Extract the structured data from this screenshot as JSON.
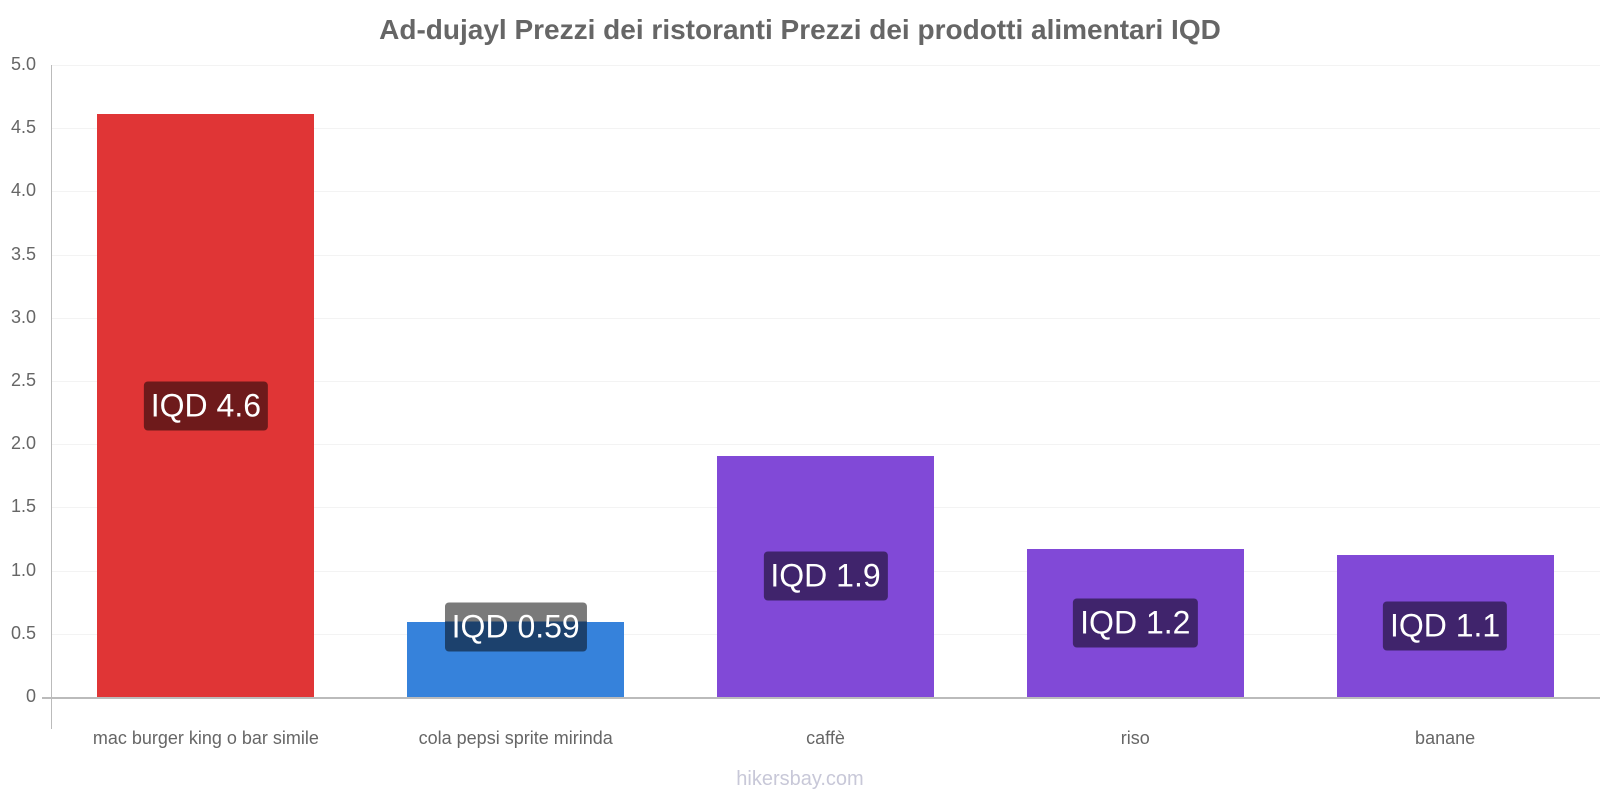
{
  "title": "Ad-dujayl Prezzi dei ristoranti Prezzi dei prodotti alimentari IQD",
  "watermark": "hikersbay.com",
  "y_ticks": [
    "0",
    "0.5",
    "1.0",
    "1.5",
    "2.0",
    "2.5",
    "3.0",
    "3.5",
    "4.0",
    "4.5",
    "5.0"
  ],
  "bars": [
    {
      "category": "mac burger king o bar simile",
      "value": 4.61,
      "label": "IQD 4.6",
      "color": "#e03536",
      "label_bg": "#6e1a1b"
    },
    {
      "category": "cola pepsi sprite mirinda",
      "value": 0.59,
      "label": "IQD 0.59",
      "color": "#3682db",
      "label_bg": "#1c416d"
    },
    {
      "category": "caffè",
      "value": 1.91,
      "label": "IQD 1.9",
      "color": "#8149d7",
      "label_bg": "#40246c"
    },
    {
      "category": "riso",
      "value": 1.17,
      "label": "IQD 1.2",
      "color": "#8149d7",
      "label_bg": "#40246c"
    },
    {
      "category": "banane",
      "value": 1.12,
      "label": "IQD 1.1",
      "color": "#8149d7",
      "label_bg": "#40246c"
    }
  ],
  "chart_data": {
    "type": "bar",
    "title": "Ad-dujayl Prezzi dei ristoranti Prezzi dei prodotti alimentari IQD",
    "categories": [
      "mac burger king o bar simile",
      "cola pepsi sprite mirinda",
      "caffè",
      "riso",
      "banane"
    ],
    "values": [
      4.61,
      0.59,
      1.91,
      1.17,
      1.12
    ],
    "data_labels": [
      "IQD 4.6",
      "IQD 0.59",
      "IQD 1.9",
      "IQD 1.2",
      "IQD 1.1"
    ],
    "colors": [
      "#e03536",
      "#3682db",
      "#8149d7",
      "#8149d7",
      "#8149d7"
    ],
    "xlabel": "",
    "ylabel": "",
    "ylim": [
      0,
      5.0
    ],
    "y_ticks": [
      0,
      0.5,
      1.0,
      1.5,
      2.0,
      2.5,
      3.0,
      3.5,
      4.0,
      4.5,
      5.0
    ],
    "grid": true,
    "legend": "none"
  }
}
